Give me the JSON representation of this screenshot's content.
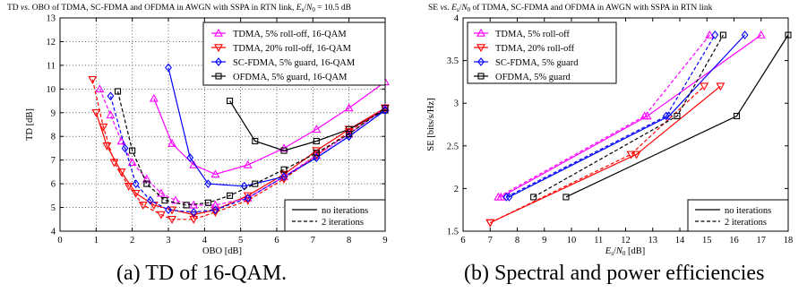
{
  "figure": {
    "caption_a": "(a) TD of 16-QAM.",
    "caption_b": "(b) Spectral and power efficiencies"
  },
  "chart_data": [
    {
      "type": "line",
      "title": "TD vs. OBO of TDMA, SC-FDMA and OFDMA in AWGN with SSPA in RTN link, Es/N0 = 10.5 dB",
      "xlabel": "OBO [dB]",
      "ylabel": "TD [dB]",
      "xlim": [
        0,
        9
      ],
      "ylim": [
        4,
        13
      ],
      "xticks": [
        "0",
        "1",
        "2",
        "3",
        "4",
        "5",
        "6",
        "7",
        "8",
        "9"
      ],
      "yticks": [
        "4",
        "5",
        "6",
        "7",
        "8",
        "9",
        "10",
        "11",
        "12",
        "13"
      ],
      "grid": true,
      "legend_position": "top-right",
      "legend": [
        {
          "label": "TDMA, 5% roll-off, 16-QAM",
          "color": "#ff00ff",
          "marker": "triangle-up"
        },
        {
          "label": "TDMA, 20% roll-off, 16-QAM",
          "color": "#ff0000",
          "marker": "triangle-down"
        },
        {
          "label": "SC-FDMA, 5% guard, 16-QAM",
          "color": "#0000ff",
          "marker": "diamond"
        },
        {
          "label": "OFDMA, 5% guard, 16-QAM",
          "color": "#000000",
          "marker": "square"
        }
      ],
      "style_legend": [
        {
          "label": "no iterations",
          "dash": "solid"
        },
        {
          "label": "2 iterations",
          "dash": "dashed"
        }
      ],
      "series": [
        {
          "legend_index": 0,
          "style": "solid",
          "points": [
            [
              2.6,
              9.6
            ],
            [
              3.1,
              7.7
            ],
            [
              3.7,
              6.8
            ],
            [
              4.3,
              6.4
            ],
            [
              5.2,
              6.8
            ],
            [
              6.2,
              7.5
            ],
            [
              7.1,
              8.3
            ],
            [
              8.0,
              9.2
            ],
            [
              9.0,
              10.3
            ]
          ]
        },
        {
          "legend_index": 1,
          "style": "solid",
          "points": [
            [
              1.0,
              9.0
            ],
            [
              1.3,
              7.6
            ],
            [
              1.7,
              6.5
            ],
            [
              2.1,
              5.6
            ],
            [
              2.6,
              5.1
            ],
            [
              3.1,
              4.9
            ],
            [
              3.7,
              4.7
            ],
            [
              4.3,
              4.9
            ],
            [
              5.2,
              5.5
            ],
            [
              6.2,
              6.4
            ],
            [
              7.1,
              7.4
            ],
            [
              8.0,
              8.3
            ],
            [
              9.0,
              9.2
            ]
          ]
        },
        {
          "legend_index": 2,
          "style": "solid",
          "points": [
            [
              3.0,
              10.9
            ],
            [
              3.6,
              7.1
            ],
            [
              4.1,
              6.0
            ],
            [
              5.1,
              5.9
            ],
            [
              6.2,
              6.3
            ],
            [
              7.1,
              7.1
            ],
            [
              8.0,
              8.0
            ],
            [
              9.0,
              9.1
            ]
          ]
        },
        {
          "legend_index": 3,
          "style": "solid",
          "points": [
            [
              4.7,
              9.5
            ],
            [
              5.4,
              7.8
            ],
            [
              6.2,
              7.4
            ],
            [
              7.1,
              7.8
            ],
            [
              8.0,
              8.3
            ],
            [
              9.0,
              9.1
            ]
          ]
        },
        {
          "legend_index": 0,
          "style": "dashed",
          "points": [
            [
              1.1,
              10.0
            ],
            [
              1.4,
              8.9
            ],
            [
              1.7,
              7.8
            ],
            [
              2.0,
              6.9
            ],
            [
              2.4,
              6.2
            ],
            [
              2.8,
              5.6
            ],
            [
              3.2,
              5.3
            ],
            [
              3.7,
              5.1
            ],
            [
              4.3,
              5.1
            ],
            [
              5.2,
              5.4
            ],
            [
              6.2,
              6.3
            ],
            [
              7.1,
              7.2
            ],
            [
              8.0,
              8.1
            ],
            [
              9.0,
              9.2
            ]
          ]
        },
        {
          "legend_index": 1,
          "style": "dashed",
          "points": [
            [
              0.9,
              10.4
            ],
            [
              1.2,
              8.4
            ],
            [
              1.5,
              6.9
            ],
            [
              1.9,
              5.9
            ],
            [
              2.3,
              5.1
            ],
            [
              2.8,
              4.7
            ],
            [
              3.1,
              4.5
            ],
            [
              3.7,
              4.5
            ],
            [
              4.3,
              4.8
            ],
            [
              5.2,
              5.3
            ],
            [
              6.2,
              6.2
            ],
            [
              7.1,
              7.2
            ],
            [
              8.0,
              8.2
            ],
            [
              9.0,
              9.2
            ]
          ]
        },
        {
          "legend_index": 2,
          "style": "dashed",
          "points": [
            [
              1.4,
              9.7
            ],
            [
              1.8,
              7.5
            ],
            [
              2.1,
              6.0
            ],
            [
              2.5,
              5.3
            ],
            [
              3.0,
              4.9
            ],
            [
              3.7,
              4.8
            ],
            [
              4.3,
              4.9
            ],
            [
              5.2,
              5.4
            ],
            [
              6.2,
              6.3
            ],
            [
              7.1,
              7.1
            ],
            [
              8.0,
              8.0
            ],
            [
              9.0,
              9.1
            ]
          ]
        },
        {
          "legend_index": 3,
          "style": "dashed",
          "points": [
            [
              1.6,
              9.9
            ],
            [
              2.0,
              7.4
            ],
            [
              2.4,
              6.0
            ],
            [
              2.9,
              5.3
            ],
            [
              3.5,
              5.1
            ],
            [
              4.1,
              5.2
            ],
            [
              4.7,
              5.5
            ],
            [
              5.4,
              6.0
            ],
            [
              6.2,
              6.6
            ],
            [
              7.1,
              7.3
            ],
            [
              8.0,
              8.1
            ],
            [
              9.0,
              9.2
            ]
          ]
        }
      ]
    },
    {
      "type": "line",
      "title": "SE vs. Es/N0 of TDMA, SC-FDMA and OFDMA in AWGN with SSPA in RTN link",
      "xlabel": "Es/N0 [dB]",
      "ylabel": "SE [bits/s/Hz]",
      "xlim": [
        6,
        18
      ],
      "ylim": [
        1.5,
        4
      ],
      "xticks": [
        "6",
        "7",
        "8",
        "9",
        "10",
        "11",
        "12",
        "13",
        "14",
        "15",
        "16",
        "17",
        "18"
      ],
      "yticks": [
        "1.5",
        "2",
        "2.5",
        "3",
        "3.5",
        "4"
      ],
      "grid": false,
      "legend_position": "top-left",
      "legend": [
        {
          "label": "TDMA, 5% roll-off",
          "color": "#ff00ff",
          "marker": "triangle-up"
        },
        {
          "label": "TDMA, 20% roll-off",
          "color": "#ff0000",
          "marker": "triangle-down"
        },
        {
          "label": "SC-FDMA, 5% guard",
          "color": "#0000ff",
          "marker": "diamond"
        },
        {
          "label": "OFDMA, 5% guard",
          "color": "#000000",
          "marker": "square"
        }
      ],
      "style_legend": [
        {
          "label": "no iterations",
          "dash": "solid"
        },
        {
          "label": "2 iterations",
          "dash": "dashed"
        }
      ],
      "series": [
        {
          "legend_index": 0,
          "style": "solid",
          "points": [
            [
              7.4,
              1.9
            ],
            [
              12.8,
              2.85
            ],
            [
              17.0,
              3.8
            ]
          ]
        },
        {
          "legend_index": 1,
          "style": "solid",
          "points": [
            [
              7.0,
              1.6
            ],
            [
              12.4,
              2.4
            ],
            [
              15.5,
              3.2
            ]
          ]
        },
        {
          "legend_index": 2,
          "style": "solid",
          "points": [
            [
              7.7,
              1.9
            ],
            [
              13.6,
              2.85
            ],
            [
              16.4,
              3.8
            ]
          ]
        },
        {
          "legend_index": 3,
          "style": "solid",
          "points": [
            [
              9.8,
              1.9
            ],
            [
              16.1,
              2.85
            ],
            [
              18.0,
              3.8
            ]
          ]
        },
        {
          "legend_index": 0,
          "style": "dashed",
          "points": [
            [
              7.3,
              1.9
            ],
            [
              12.7,
              2.85
            ],
            [
              15.1,
              3.8
            ]
          ]
        },
        {
          "legend_index": 1,
          "style": "dashed",
          "points": [
            [
              7.0,
              1.6
            ],
            [
              12.2,
              2.4
            ],
            [
              14.9,
              3.2
            ]
          ]
        },
        {
          "legend_index": 2,
          "style": "dashed",
          "points": [
            [
              7.6,
              1.9
            ],
            [
              13.5,
              2.85
            ],
            [
              15.3,
              3.8
            ]
          ]
        },
        {
          "legend_index": 3,
          "style": "dashed",
          "points": [
            [
              8.6,
              1.9
            ],
            [
              13.9,
              2.85
            ],
            [
              15.6,
              3.8
            ]
          ]
        }
      ]
    }
  ]
}
